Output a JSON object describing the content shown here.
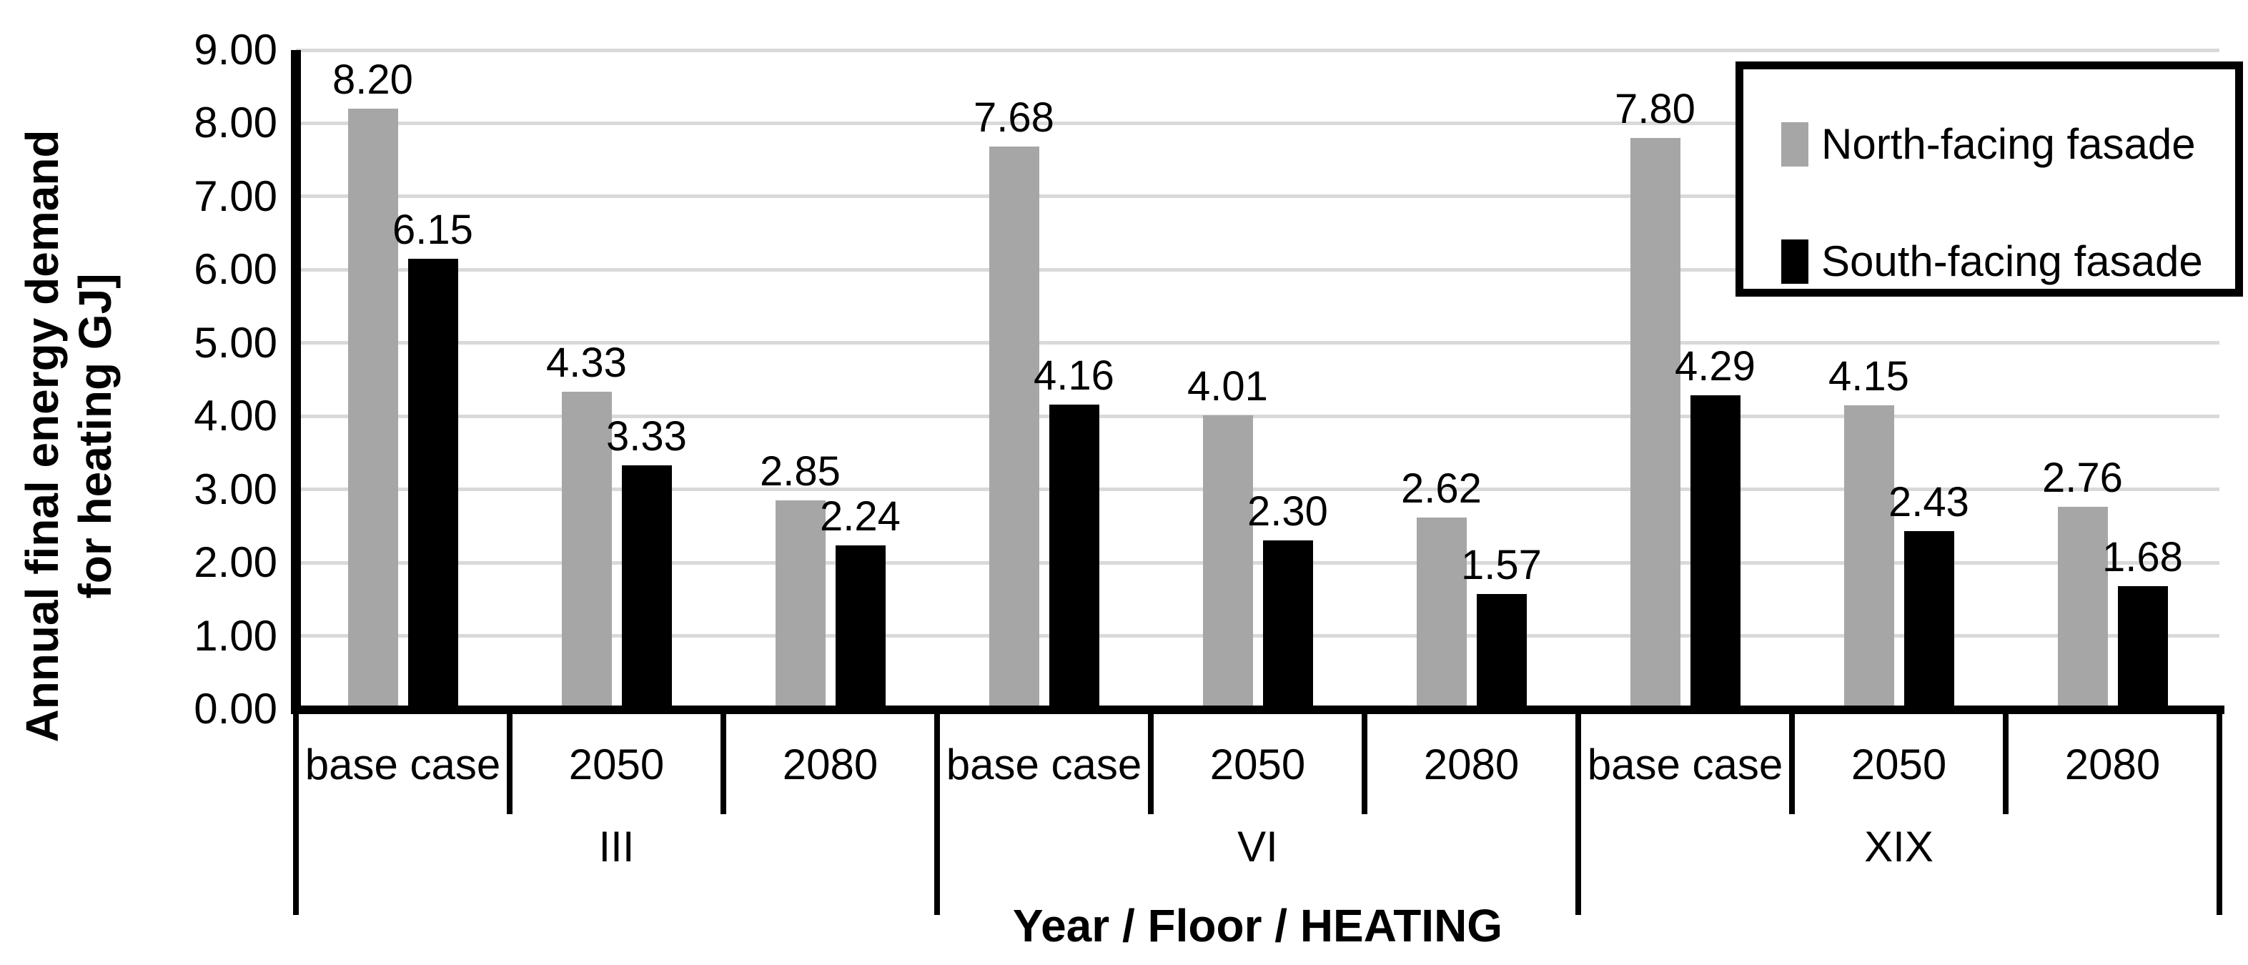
{
  "chart_data": {
    "type": "bar",
    "title": "",
    "xlabel": "Year / Floor / HEATING",
    "ylabel_lines": [
      "Annual final energy demand",
      "for heating GJ]"
    ],
    "ylim": [
      0,
      9
    ],
    "y_tick_labels": [
      "0.00",
      "1.00",
      "2.00",
      "3.00",
      "4.00",
      "5.00",
      "6.00",
      "7.00",
      "8.00",
      "9.00"
    ],
    "grid": true,
    "legend_position": "top-right",
    "groups": [
      "III",
      "VI",
      "XIX"
    ],
    "subcategories": [
      "base case",
      "2050",
      "2080"
    ],
    "series": [
      {
        "name": "North-facing fasade",
        "color": "#A6A6A6",
        "values": [
          [
            8.2,
            4.33,
            2.85
          ],
          [
            7.68,
            4.01,
            2.62
          ],
          [
            7.8,
            4.15,
            2.76
          ]
        ]
      },
      {
        "name": "South-facing fasade",
        "color": "#000000",
        "values": [
          [
            6.15,
            3.33,
            2.24
          ],
          [
            4.16,
            2.3,
            1.57
          ],
          [
            4.29,
            2.43,
            1.68
          ]
        ]
      }
    ]
  },
  "colors": {
    "background": "#FFFFFF",
    "gridline": "#D9D9D9",
    "axis": "#000000",
    "label_text": "#000000"
  }
}
